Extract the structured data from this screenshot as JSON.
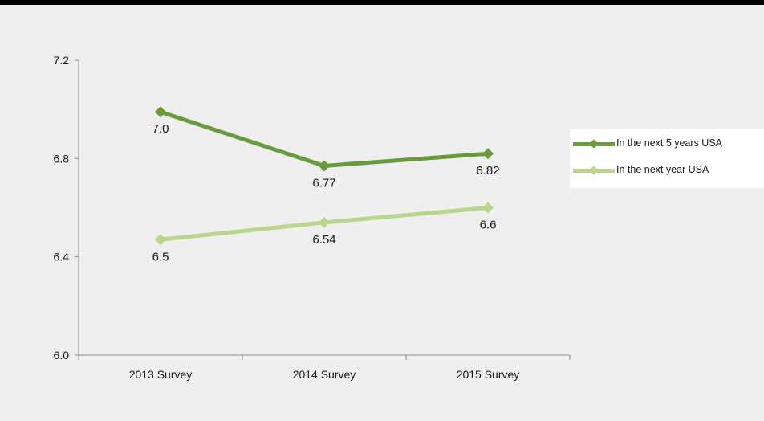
{
  "colors": {
    "background": "#efefef",
    "axis": "#8c8c8c",
    "series_1": "#6b9a3c",
    "series_2": "#b8d68c"
  },
  "chart_data": {
    "type": "line",
    "categories": [
      "2013 Survey",
      "2014 Survey",
      "2015 Survey"
    ],
    "ylim": [
      6.0,
      7.2
    ],
    "yticks": [
      "6.0",
      "6.4",
      "6.8",
      "7.2"
    ],
    "grid": false,
    "legend_position": "right",
    "series": [
      {
        "name": "In the next 5 years USA",
        "values": [
          6.99,
          6.77,
          6.82
        ],
        "labels": [
          "7.0",
          "6.77",
          "6.82"
        ],
        "color": "#6b9a3c"
      },
      {
        "name": "In the next year USA",
        "values": [
          6.47,
          6.54,
          6.6
        ],
        "labels": [
          "6.5",
          "6.54",
          "6.6"
        ],
        "color": "#b8d68c"
      }
    ]
  }
}
